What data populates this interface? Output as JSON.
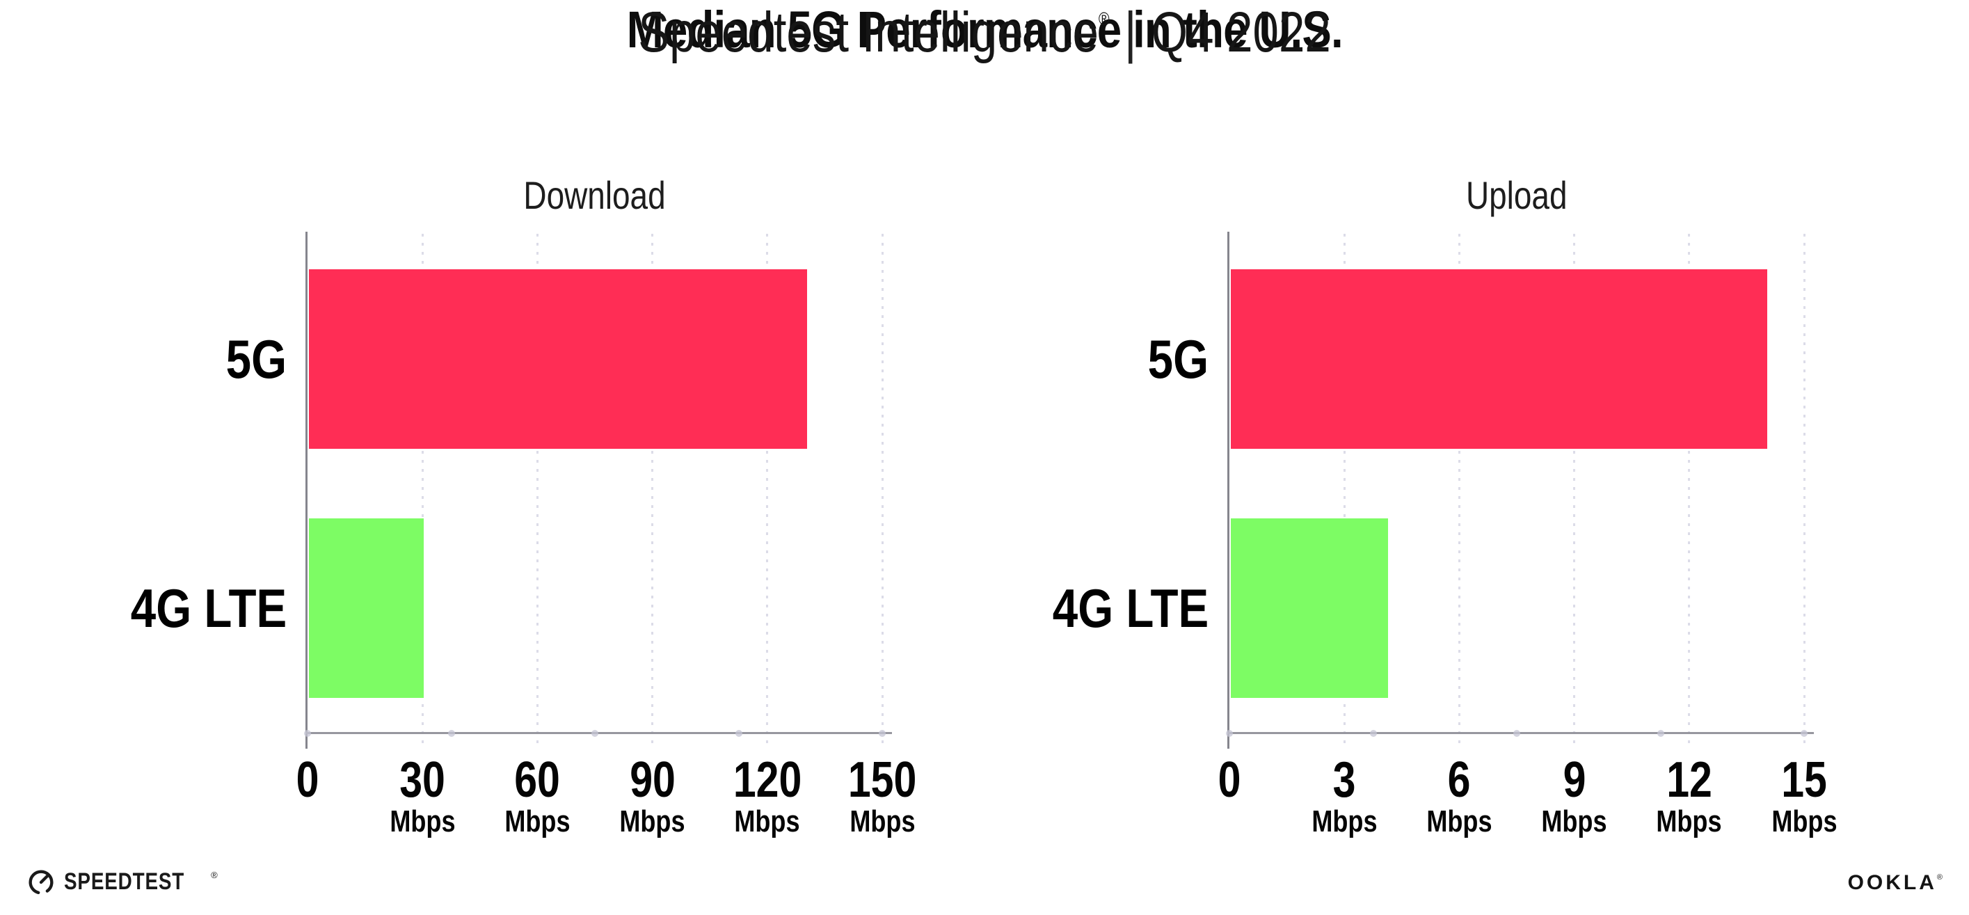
{
  "page": {
    "title": "Median 5G Performance in the U.S.",
    "subtitle": {
      "product": "Speedtest Intelligence",
      "registered_mark": "®",
      "divider": "|",
      "period": "Q4 2022"
    }
  },
  "chart_data": [
    {
      "type": "bar",
      "orientation": "horizontal",
      "title": "Download",
      "categories": [
        "5G",
        "4G LTE"
      ],
      "values": [
        130,
        30
      ],
      "unit": "Mbps",
      "xlim": [
        0,
        150
      ],
      "xticks": [
        0,
        30,
        60,
        90,
        120,
        150
      ],
      "xtick_labels": [
        "0",
        "30",
        "60",
        "90",
        "120",
        "150"
      ],
      "grid": "vertical-dotted",
      "legend": "none",
      "bar_colors": [
        "#ff2d55",
        "#7dfc64"
      ]
    },
    {
      "type": "bar",
      "orientation": "horizontal",
      "title": "Upload",
      "categories": [
        "5G",
        "4G LTE"
      ],
      "values": [
        14,
        4.1
      ],
      "unit": "Mbps",
      "xlim": [
        0,
        15
      ],
      "xticks": [
        0,
        3,
        6,
        9,
        12,
        15
      ],
      "xtick_labels": [
        "0",
        "3",
        "6",
        "9",
        "12",
        "15"
      ],
      "grid": "vertical-dotted",
      "legend": "none",
      "bar_colors": [
        "#ff2d55",
        "#7dfc64"
      ]
    }
  ],
  "footer": {
    "speedtest_logo": {
      "label": "SPEEDTEST",
      "registered_mark": "®",
      "icon": "speedtest-gauge-icon"
    },
    "ookla_logo": {
      "label": "OOKLA",
      "registered_mark": "®"
    }
  },
  "colors": {
    "bar_5g": "#ff2d55",
    "bar_4g_lte": "#7dfc64",
    "axis_line": "#97979f",
    "gridline_dotted": "#dcdce8",
    "text": "#111111",
    "background": "#ffffff"
  }
}
